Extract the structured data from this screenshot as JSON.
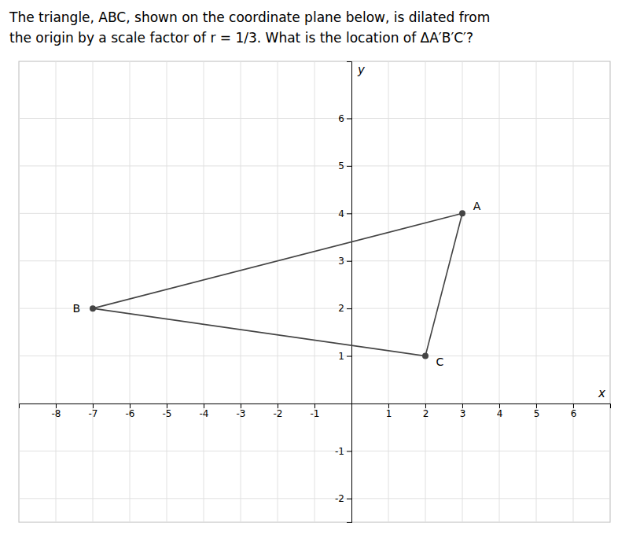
{
  "chart_data": {
    "type": "polygon",
    "title": "The triangle, ABC, shown on the coordinate plane below, is dilated from",
    "subtitle": "the origin by a scale factor of r = 1/3. What is the location of ΔA′B′C′?",
    "xlabel": "x",
    "ylabel": "y",
    "x": [
      3,
      -7,
      2
    ],
    "values": [
      4,
      2,
      1
    ],
    "annotations": [
      "A",
      "B",
      "C"
    ],
    "color": "#444444",
    "marker": "circle",
    "xlim": [
      -9,
      7
    ],
    "ylim": [
      -2.5,
      7.2
    ],
    "xticks": [
      -8,
      -7,
      -6,
      -5,
      -4,
      -3,
      -2,
      -1,
      1,
      2,
      3,
      4,
      5,
      6
    ],
    "yticks": [
      -2,
      -1,
      1,
      2,
      3,
      4,
      5,
      6
    ],
    "grid": true
  }
}
